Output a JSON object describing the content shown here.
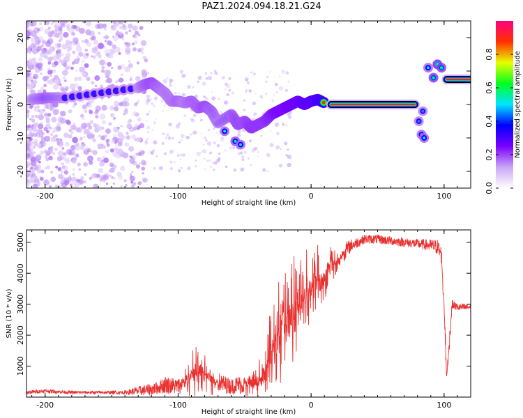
{
  "title": "PAZ1.2024.094.18.21.G24",
  "chart_data": [
    {
      "type": "heatmap",
      "xlabel": "Height of straight line (km)",
      "ylabel": "Frequency (Hz)",
      "xlim": [
        -214,
        120
      ],
      "ylim": [
        -25,
        25
      ],
      "xticks": [
        -200,
        -100,
        0,
        100
      ],
      "xtick_labels": [
        "-200",
        "-100",
        "0",
        "100"
      ],
      "yticks": [
        -20,
        -10,
        0,
        10,
        20
      ],
      "ytick_labels": [
        "-20",
        "-10",
        "0",
        "10",
        "20"
      ],
      "colorbar": {
        "label": "Normalized spectral amplitude",
        "range": [
          0,
          1
        ],
        "ticks": [
          0.0,
          0.2,
          0.4,
          0.6,
          0.8
        ],
        "tick_labels": [
          "0.0",
          "0.2",
          "0.4",
          "0.6",
          "0.8"
        ],
        "colors": [
          "#ffffff",
          "#c9a6f5",
          "#7a00ff",
          "#0000ff",
          "#00e5ff",
          "#00ff20",
          "#e8ff00",
          "#ff3000",
          "#ff0080"
        ]
      },
      "ridge": [
        {
          "x": -210,
          "y": 1.5,
          "a": 0.4
        },
        {
          "x": -200,
          "y": 2,
          "a": 0.5
        },
        {
          "x": -185,
          "y": 2,
          "a": 0.4
        },
        {
          "x": -130,
          "y": 5,
          "a": 0.4
        },
        {
          "x": -125,
          "y": 6,
          "a": 0.5
        },
        {
          "x": -120,
          "y": 6.5,
          "a": 0.55
        },
        {
          "x": -115,
          "y": 5,
          "a": 0.5
        },
        {
          "x": -110,
          "y": 3.5,
          "a": 0.45
        },
        {
          "x": -105,
          "y": 1,
          "a": 0.45
        },
        {
          "x": -100,
          "y": 1,
          "a": 0.5
        },
        {
          "x": -95,
          "y": 0.5,
          "a": 0.45
        },
        {
          "x": -90,
          "y": 1,
          "a": 0.5
        },
        {
          "x": -85,
          "y": -1,
          "a": 0.5
        },
        {
          "x": -80,
          "y": -0.5,
          "a": 0.55
        },
        {
          "x": -75,
          "y": -2,
          "a": 0.5
        },
        {
          "x": -70,
          "y": -5.5,
          "a": 0.45
        },
        {
          "x": -60,
          "y": -3,
          "a": 0.5
        },
        {
          "x": -55,
          "y": -6,
          "a": 0.55
        },
        {
          "x": -50,
          "y": -5,
          "a": 0.55
        },
        {
          "x": -45,
          "y": -7,
          "a": 0.6
        },
        {
          "x": -40,
          "y": -6,
          "a": 0.6
        },
        {
          "x": -35,
          "y": -5,
          "a": 0.6
        },
        {
          "x": -30,
          "y": -3,
          "a": 0.65
        },
        {
          "x": -25,
          "y": -2,
          "a": 0.7
        },
        {
          "x": -20,
          "y": -1,
          "a": 0.7
        },
        {
          "x": -15,
          "y": 0,
          "a": 0.75
        },
        {
          "x": -10,
          "y": 1,
          "a": 0.75
        },
        {
          "x": -5,
          "y": 0,
          "a": 0.8
        },
        {
          "x": 0,
          "y": 1,
          "a": 0.8
        },
        {
          "x": 5,
          "y": 1.5,
          "a": 0.85
        },
        {
          "x": 10,
          "y": 0.5,
          "a": 0.9
        }
      ],
      "segments": [
        {
          "x0": 15,
          "x1": 78,
          "y": 0,
          "a": 0.95
        },
        {
          "x0": 102,
          "x1": 120,
          "y": 7.5,
          "a": 0.95
        }
      ],
      "blobs": [
        {
          "x": -65,
          "y": -8,
          "a": 0.5
        },
        {
          "x": -57,
          "y": -11,
          "a": 0.55
        },
        {
          "x": -53,
          "y": -12,
          "a": 0.5
        },
        {
          "x": 81,
          "y": -5,
          "a": 0.45
        },
        {
          "x": 83,
          "y": -9,
          "a": 0.5
        },
        {
          "x": 85,
          "y": -10,
          "a": 0.5
        },
        {
          "x": 84,
          "y": -2,
          "a": 0.45
        },
        {
          "x": 88,
          "y": 11,
          "a": 0.5
        },
        {
          "x": 92,
          "y": 8,
          "a": 0.6
        },
        {
          "x": 95,
          "y": 12,
          "a": 0.65
        },
        {
          "x": 98,
          "y": 11,
          "a": 0.6
        }
      ]
    },
    {
      "type": "line",
      "xlabel": "Height of straight line (km)",
      "ylabel": "SNR (10 * v/v)",
      "xlim": [
        -214,
        120
      ],
      "ylim": [
        0,
        5400
      ],
      "xticks": [
        -200,
        -100,
        0,
        100
      ],
      "xtick_labels": [
        "-200",
        "-100",
        "0",
        "100"
      ],
      "yticks": [
        1000,
        2000,
        3000,
        4000,
        5000
      ],
      "ytick_labels": [
        "1000",
        "2000",
        "3000",
        "4000",
        "5000"
      ],
      "series": [
        {
          "color": "#e8302f",
          "x": [
            -214,
            -200,
            -180,
            -160,
            -140,
            -130,
            -120,
            -115,
            -110,
            -100,
            -95,
            -90,
            -85,
            -80,
            -75,
            -70,
            -65,
            -60,
            -55,
            -50,
            -45,
            -40,
            -35,
            -30,
            -25,
            -20,
            -15,
            -10,
            -5,
            0,
            5,
            10,
            15,
            20,
            25,
            30,
            40,
            50,
            60,
            70,
            80,
            90,
            95,
            98,
            100,
            102,
            104,
            106,
            110,
            120
          ],
          "y": [
            150,
            200,
            150,
            150,
            150,
            200,
            250,
            300,
            400,
            350,
            500,
            700,
            900,
            800,
            600,
            500,
            400,
            350,
            400,
            400,
            400,
            450,
            700,
            1500,
            2100,
            2500,
            2600,
            2800,
            3200,
            3500,
            4000,
            3800,
            4500,
            4300,
            4700,
            4900,
            5100,
            5100,
            5050,
            5000,
            4950,
            4900,
            4850,
            4600,
            3000,
            700,
            1800,
            3000,
            2900,
            2900
          ],
          "noise": [
            60,
            60,
            50,
            50,
            60,
            150,
            200,
            200,
            300,
            250,
            400,
            700,
            800,
            600,
            400,
            300,
            300,
            250,
            300,
            300,
            350,
            400,
            800,
            1400,
            1600,
            1700,
            1600,
            1500,
            1300,
            1200,
            900,
            700,
            600,
            400,
            300,
            200,
            150,
            150,
            150,
            150,
            150,
            200,
            250,
            300,
            600,
            400,
            300,
            150,
            120,
            120
          ]
        }
      ]
    }
  ]
}
